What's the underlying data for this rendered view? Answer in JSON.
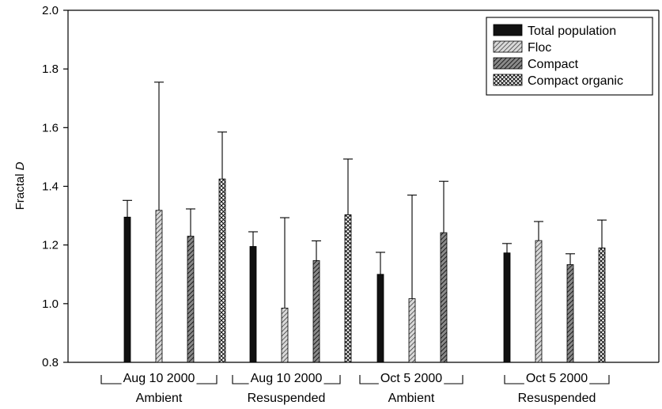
{
  "chart_data": {
    "type": "bar",
    "title": "",
    "xlabel": "",
    "ylabel": "Fractal D",
    "ylabel_parts": [
      "Fractal ",
      "D"
    ],
    "ylim": [
      0.8,
      2.0
    ],
    "yticks": [
      "0.8",
      "1.0",
      "1.2",
      "1.4",
      "1.6",
      "1.8",
      "2.0"
    ],
    "grid": false,
    "legend_position": "top-right",
    "groups": [
      {
        "line1": "Aug 10 2000",
        "line2": "Ambient"
      },
      {
        "line1": "Aug 10 2000",
        "line2": "Resuspended"
      },
      {
        "line1": "Oct 5 2000",
        "line2": "Ambient"
      },
      {
        "line1": "Oct 5 2000",
        "line2": "Resuspended"
      }
    ],
    "series": [
      {
        "name": "Total population",
        "fill": "solid",
        "values": [
          1.295,
          1.195,
          1.1,
          1.173
        ],
        "errors": [
          0.057,
          0.05,
          0.075,
          0.032
        ]
      },
      {
        "name": "Floc",
        "fill": "light-hatch",
        "values": [
          1.318,
          0.985,
          1.017,
          1.215
        ],
        "errors": [
          0.437,
          0.308,
          0.353,
          0.065
        ]
      },
      {
        "name": "Compact",
        "fill": "dark-hatch",
        "values": [
          1.23,
          1.147,
          1.242,
          1.133
        ],
        "errors": [
          0.093,
          0.067,
          0.175,
          0.037
        ]
      },
      {
        "name": "Compact organic",
        "fill": "crosshatch",
        "values": [
          1.425,
          1.303,
          null,
          1.19
        ],
        "errors": [
          0.16,
          0.19,
          null,
          0.095
        ]
      }
    ]
  }
}
